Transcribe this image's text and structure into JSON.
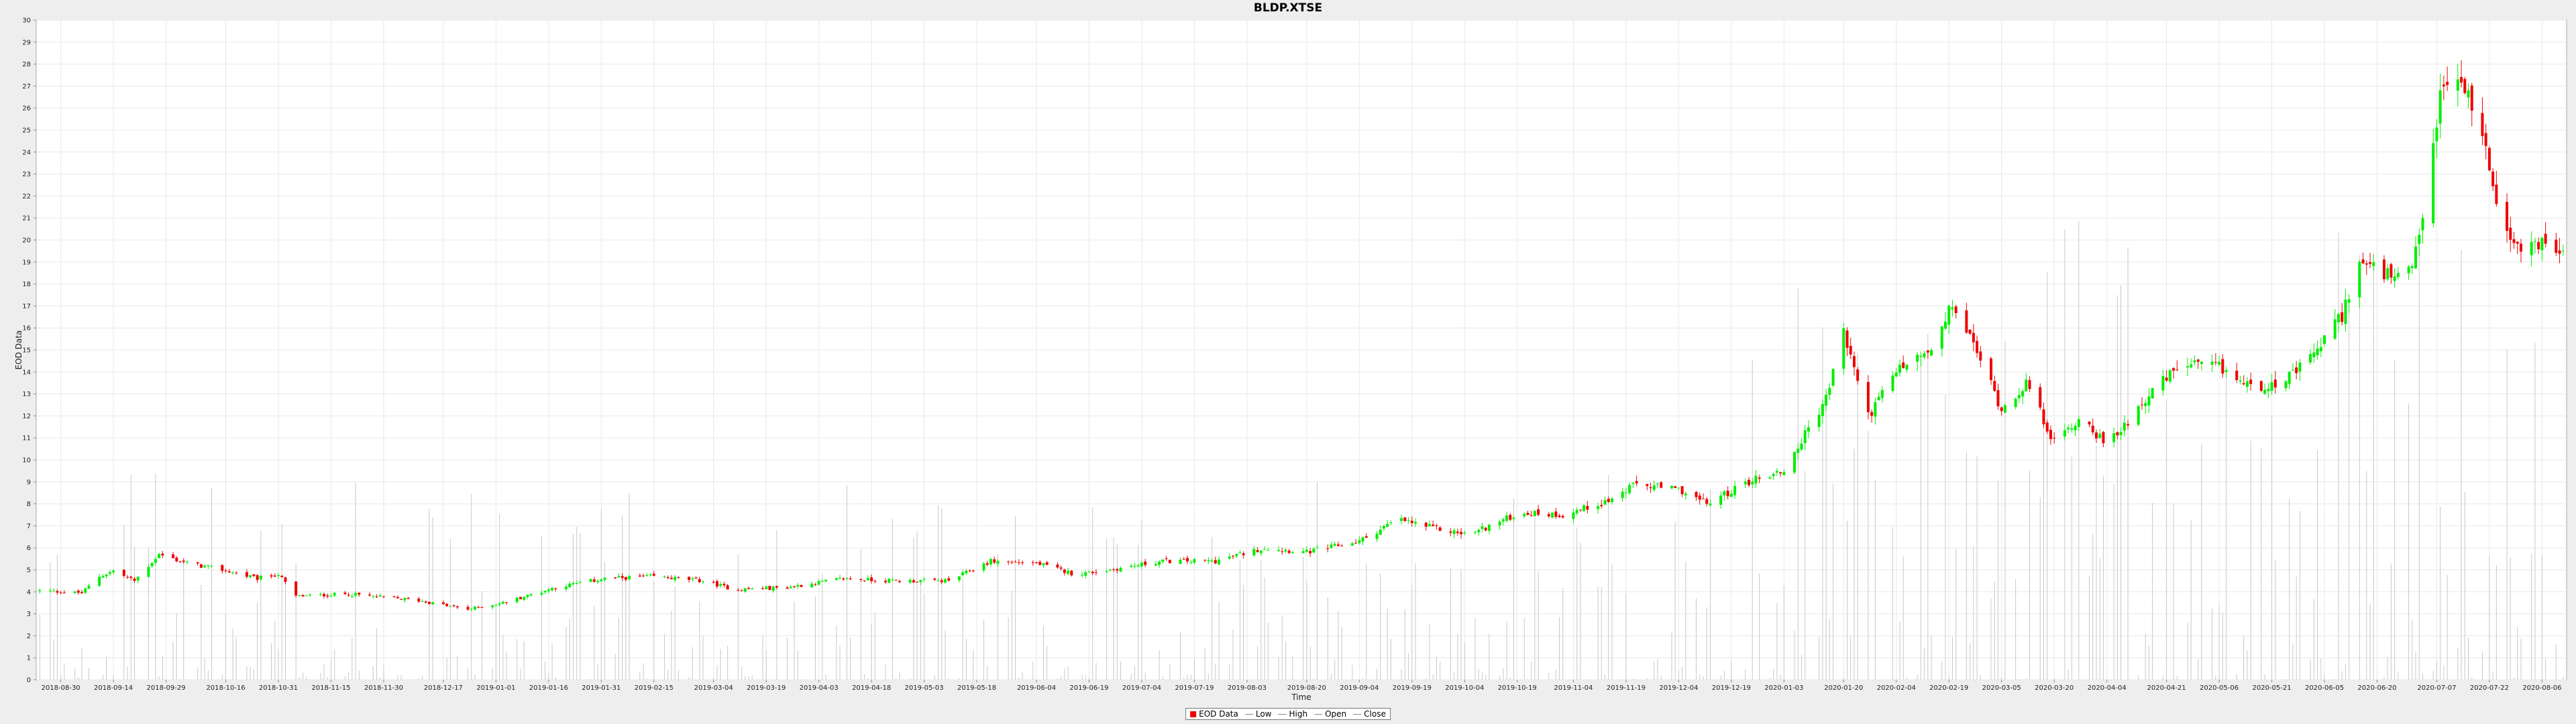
{
  "chart_data": {
    "type": "candlestick",
    "title": "BLDP.XTSE",
    "xlabel": "Time",
    "ylabel": "EOD Data",
    "ylim": [
      0,
      30
    ],
    "yticks": [
      0,
      1,
      2,
      3,
      4,
      5,
      6,
      7,
      8,
      9,
      10,
      11,
      12,
      13,
      14,
      15,
      16,
      17,
      18,
      19,
      20,
      21,
      22,
      23,
      24,
      25,
      26,
      27,
      28,
      29,
      30
    ],
    "xlim": [
      "2018-08-23",
      "2020-08-13"
    ],
    "xticks": [
      "2018-08-30",
      "2018-09-14",
      "2018-09-29",
      "2018-10-16",
      "2018-10-31",
      "2018-11-15",
      "2018-11-30",
      "2018-12-17",
      "2019-01-01",
      "2019-01-16",
      "2019-01-31",
      "2019-02-15",
      "2019-03-04",
      "2019-03-19",
      "2019-04-03",
      "2019-04-18",
      "2019-05-03",
      "2019-05-18",
      "2019-06-04",
      "2019-06-19",
      "2019-07-04",
      "2019-07-19",
      "2019-08-03",
      "2019-08-20",
      "2019-09-04",
      "2019-09-19",
      "2019-10-04",
      "2019-10-19",
      "2019-11-04",
      "2019-11-19",
      "2019-12-04",
      "2019-12-19",
      "2020-01-03",
      "2020-01-20",
      "2020-02-04",
      "2020-02-19",
      "2020-03-05",
      "2020-03-20",
      "2020-04-04",
      "2020-04-21",
      "2020-05-06",
      "2020-05-21",
      "2020-06-05",
      "2020-06-20",
      "2020-07-07",
      "2020-07-22",
      "2020-08-06"
    ],
    "grid": true,
    "legend": {
      "position": "bottom-center",
      "entries": [
        "EOD Data",
        "Low",
        "High",
        "Open",
        "Close"
      ]
    },
    "colors": {
      "up": "#00ee00",
      "down": "#ee0000",
      "volume": "#c8c8c8",
      "grid": "#e8e8e8"
    },
    "series_close_approx": [
      {
        "date": "2018-08-24",
        "close": 4.05
      },
      {
        "date": "2018-09-05",
        "close": 3.95
      },
      {
        "date": "2018-09-10",
        "close": 4.7
      },
      {
        "date": "2018-09-14",
        "close": 4.95
      },
      {
        "date": "2018-09-20",
        "close": 4.5
      },
      {
        "date": "2018-09-27",
        "close": 5.7
      },
      {
        "date": "2018-10-05",
        "close": 5.3
      },
      {
        "date": "2018-10-15",
        "close": 5.0
      },
      {
        "date": "2018-10-25",
        "close": 4.6
      },
      {
        "date": "2018-10-31",
        "close": 4.8
      },
      {
        "date": "2018-11-05",
        "close": 3.8
      },
      {
        "date": "2018-11-20",
        "close": 3.9
      },
      {
        "date": "2018-12-10",
        "close": 3.6
      },
      {
        "date": "2018-12-24",
        "close": 3.2
      },
      {
        "date": "2019-01-03",
        "close": 3.5
      },
      {
        "date": "2019-01-18",
        "close": 4.2
      },
      {
        "date": "2019-02-01",
        "close": 4.6
      },
      {
        "date": "2019-02-15",
        "close": 4.7
      },
      {
        "date": "2019-03-01",
        "close": 4.5
      },
      {
        "date": "2019-03-10",
        "close": 4.1
      },
      {
        "date": "2019-03-25",
        "close": 4.2
      },
      {
        "date": "2019-04-10",
        "close": 4.6
      },
      {
        "date": "2019-04-25",
        "close": 4.5
      },
      {
        "date": "2019-05-10",
        "close": 4.5
      },
      {
        "date": "2019-05-22",
        "close": 5.4
      },
      {
        "date": "2019-06-04",
        "close": 5.3
      },
      {
        "date": "2019-06-15",
        "close": 4.8
      },
      {
        "date": "2019-06-25",
        "close": 5.0
      },
      {
        "date": "2019-07-10",
        "close": 5.4
      },
      {
        "date": "2019-07-25",
        "close": 5.4
      },
      {
        "date": "2019-08-08",
        "close": 6.0
      },
      {
        "date": "2019-08-20",
        "close": 5.8
      },
      {
        "date": "2019-09-04",
        "close": 6.3
      },
      {
        "date": "2019-09-15",
        "close": 7.3
      },
      {
        "date": "2019-09-25",
        "close": 6.9
      },
      {
        "date": "2019-10-05",
        "close": 6.6
      },
      {
        "date": "2019-10-20",
        "close": 7.6
      },
      {
        "date": "2019-11-01",
        "close": 7.5
      },
      {
        "date": "2019-11-15",
        "close": 8.2
      },
      {
        "date": "2019-11-22",
        "close": 8.9
      },
      {
        "date": "2019-12-05",
        "close": 8.6
      },
      {
        "date": "2019-12-12",
        "close": 8.0
      },
      {
        "date": "2019-12-25",
        "close": 9.1
      },
      {
        "date": "2020-01-03",
        "close": 9.5
      },
      {
        "date": "2020-01-15",
        "close": 12.8
      },
      {
        "date": "2020-01-20",
        "close": 15.8
      },
      {
        "date": "2020-01-27",
        "close": 12.0
      },
      {
        "date": "2020-02-05",
        "close": 14.2
      },
      {
        "date": "2020-02-15",
        "close": 15.0
      },
      {
        "date": "2020-02-20",
        "close": 17.1
      },
      {
        "date": "2020-02-28",
        "close": 14.6
      },
      {
        "date": "2020-03-05",
        "close": 12.3
      },
      {
        "date": "2020-03-12",
        "close": 13.5
      },
      {
        "date": "2020-03-20",
        "close": 10.8
      },
      {
        "date": "2020-03-28",
        "close": 12.0
      },
      {
        "date": "2020-04-04",
        "close": 10.6
      },
      {
        "date": "2020-04-15",
        "close": 12.8
      },
      {
        "date": "2020-04-25",
        "close": 14.3
      },
      {
        "date": "2020-05-06",
        "close": 14.2
      },
      {
        "date": "2020-05-15",
        "close": 13.3
      },
      {
        "date": "2020-05-25",
        "close": 13.6
      },
      {
        "date": "2020-06-01",
        "close": 14.6
      },
      {
        "date": "2020-06-10",
        "close": 16.6
      },
      {
        "date": "2020-06-15",
        "close": 19.0
      },
      {
        "date": "2020-06-25",
        "close": 18.2
      },
      {
        "date": "2020-06-30",
        "close": 18.5
      },
      {
        "date": "2020-07-03",
        "close": 21.0
      },
      {
        "date": "2020-07-08",
        "close": 26.5
      },
      {
        "date": "2020-07-12",
        "close": 27.6
      },
      {
        "date": "2020-07-18",
        "close": 26.0
      },
      {
        "date": "2020-07-24",
        "close": 22.0
      },
      {
        "date": "2020-07-30",
        "close": 19.5
      },
      {
        "date": "2020-08-06",
        "close": 20.0
      },
      {
        "date": "2020-08-12",
        "close": 19.2
      }
    ]
  }
}
